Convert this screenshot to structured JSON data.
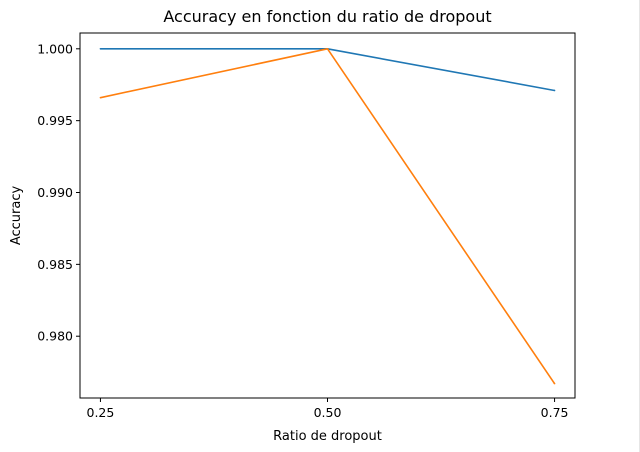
{
  "chart_data": {
    "type": "line",
    "title": "Accuracy en fonction du ratio de dropout",
    "xlabel": "Ratio de dropout",
    "ylabel": "Accuracy",
    "x": [
      0.25,
      0.5,
      0.75
    ],
    "xticks": [
      "0.25",
      "0.50",
      "0.75"
    ],
    "yticks": [
      "0.980",
      "0.985",
      "0.990",
      "0.995",
      "1.000"
    ],
    "ylim": [
      0.9757,
      1.0011
    ],
    "grid": false,
    "series": [
      {
        "color": "#1f77b4",
        "values": [
          1.0,
          1.0,
          0.9971
        ]
      },
      {
        "color": "#ff7f0e",
        "values": [
          0.9966,
          1.0,
          0.9767
        ]
      }
    ]
  }
}
